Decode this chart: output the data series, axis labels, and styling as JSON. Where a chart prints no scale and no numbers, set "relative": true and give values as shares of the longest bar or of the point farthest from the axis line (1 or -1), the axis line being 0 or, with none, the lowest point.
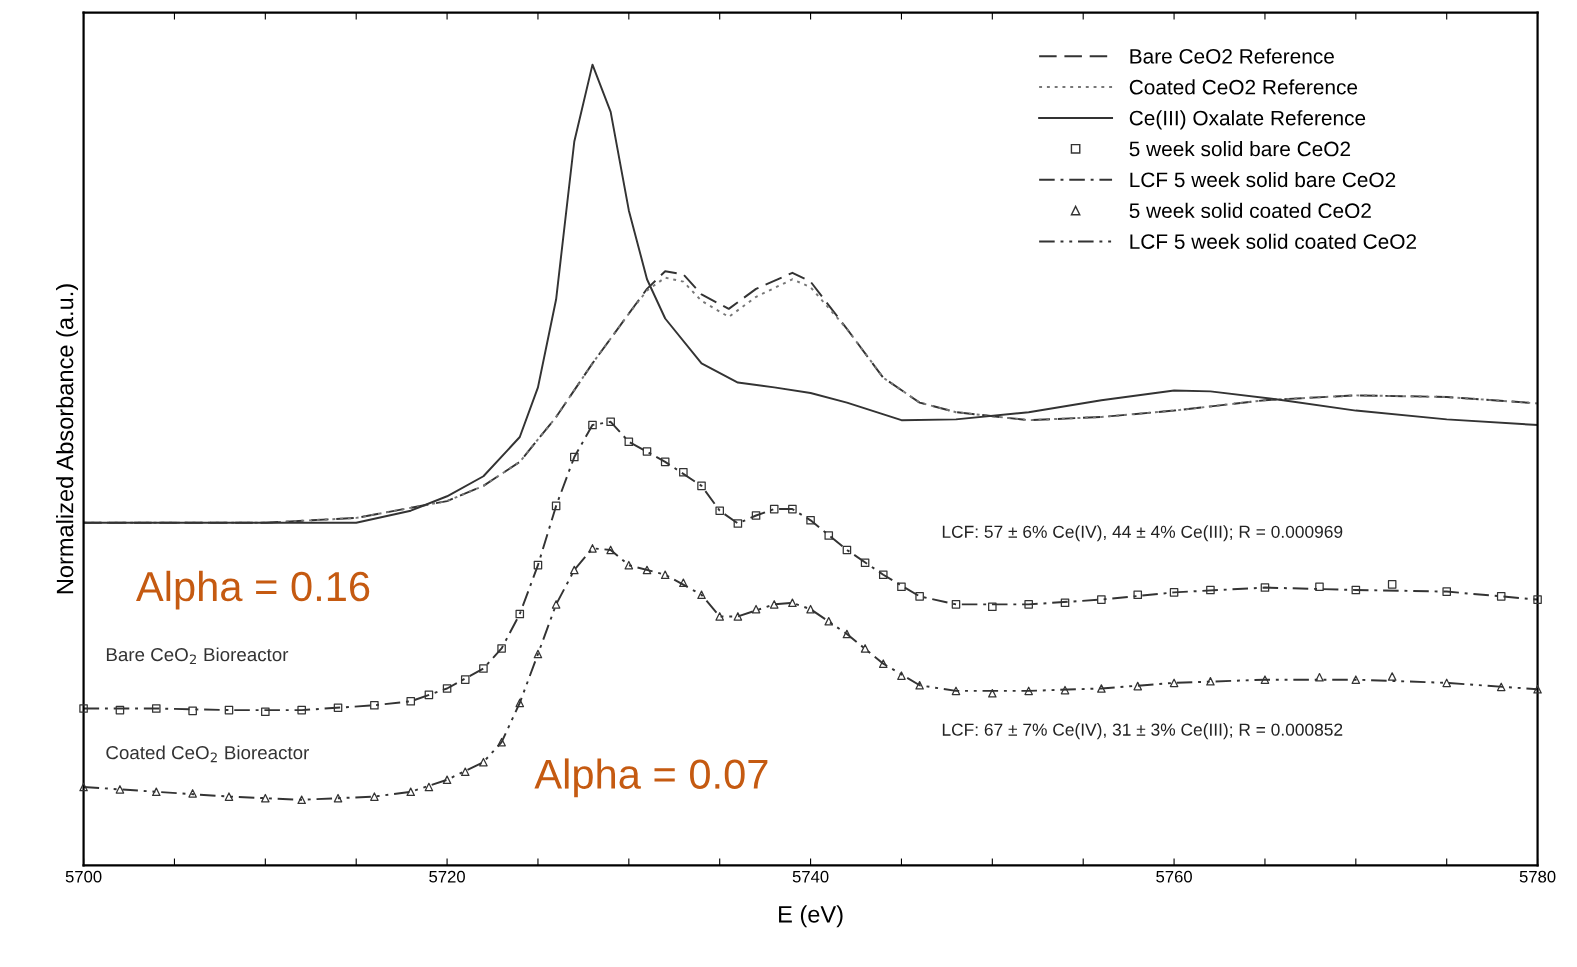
{
  "chart_data": {
    "type": "line",
    "relative": true,
    "xlabel": "E (eV)",
    "ylabel": "Normalized Absorbance (a.u.)",
    "xlim": [
      5700,
      5780
    ],
    "xticks": [
      5700,
      {
        "value": 5705,
        "label": null
      },
      {
        "value": 5710,
        "label": null
      },
      {
        "value": 5715,
        "label": null
      },
      5720,
      {
        "value": 5725,
        "label": null
      },
      {
        "value": 5730,
        "label": null
      },
      {
        "value": 5735,
        "label": null
      },
      5740,
      {
        "value": 5745,
        "label": null
      },
      {
        "value": 5750,
        "label": null
      },
      {
        "value": 5755,
        "label": null
      },
      5760,
      {
        "value": 5765,
        "label": null
      },
      {
        "value": 5770,
        "label": null
      },
      {
        "value": 5775,
        "label": null
      },
      5780
    ],
    "tick_labels": "x",
    "grid": false,
    "legend": "top right",
    "series": [
      {
        "name": "Bare CeO2 Reference",
        "color": "#333333",
        "line_style": "dashed",
        "x": [
          5700,
          5710,
          5715,
          5720,
          5722,
          5724,
          5726,
          5728,
          5730,
          5731,
          5732,
          5733,
          5734,
          5735.5,
          5737,
          5739,
          5740,
          5742,
          5744,
          5746,
          5748,
          5752,
          5756,
          5760,
          5765,
          5770,
          5775,
          5780
        ],
        "values": [
          0.428,
          0.428,
          0.434,
          0.455,
          0.474,
          0.504,
          0.56,
          0.627,
          0.689,
          0.72,
          0.742,
          0.738,
          0.713,
          0.695,
          0.72,
          0.74,
          0.729,
          0.67,
          0.609,
          0.578,
          0.566,
          0.556,
          0.56,
          0.568,
          0.581,
          0.587,
          0.585,
          0.577
        ]
      },
      {
        "name": "Coated CeO2 Reference",
        "color": "#777777",
        "line_style": "dotted",
        "x": [
          5700,
          5710,
          5715,
          5720,
          5722,
          5724,
          5726,
          5728,
          5730,
          5731,
          5732,
          5733,
          5734,
          5735.5,
          5737,
          5739,
          5740,
          5742,
          5744,
          5746,
          5748,
          5752,
          5756,
          5760,
          5765,
          5770,
          5775,
          5780
        ],
        "values": [
          0.428,
          0.428,
          0.434,
          0.455,
          0.474,
          0.504,
          0.56,
          0.627,
          0.689,
          0.718,
          0.734,
          0.729,
          0.705,
          0.685,
          0.71,
          0.732,
          0.722,
          0.67,
          0.609,
          0.578,
          0.566,
          0.556,
          0.56,
          0.568,
          0.581,
          0.587,
          0.585,
          0.577
        ]
      },
      {
        "name": "Ce(III) Oxalate Reference",
        "color": "#333333",
        "line_style": "solid",
        "x": [
          5700,
          5715,
          5718,
          5720,
          5722,
          5724,
          5725,
          5726,
          5727,
          5728,
          5729,
          5730,
          5731,
          5732,
          5734,
          5736,
          5738,
          5740,
          5742,
          5745,
          5748,
          5752,
          5756,
          5760,
          5762,
          5766,
          5770,
          5775,
          5780
        ],
        "values": [
          0.428,
          0.428,
          0.443,
          0.461,
          0.486,
          0.535,
          0.597,
          0.707,
          0.904,
          1.0,
          0.941,
          0.818,
          0.732,
          0.683,
          0.627,
          0.603,
          0.597,
          0.59,
          0.578,
          0.556,
          0.557,
          0.566,
          0.581,
          0.593,
          0.592,
          0.581,
          0.568,
          0.557,
          0.55
        ]
      },
      {
        "name": "5 week solid bare CeO2",
        "type": "scatter",
        "marker": "square",
        "color": "#333333",
        "x": [
          5700,
          5702,
          5704,
          5706,
          5708,
          5710,
          5712,
          5714,
          5716,
          5718,
          5719,
          5720,
          5721,
          5722,
          5723,
          5724,
          5725,
          5726,
          5727,
          5728,
          5729,
          5730,
          5731,
          5732,
          5733,
          5734,
          5735,
          5736,
          5737,
          5738,
          5739,
          5740,
          5741,
          5742,
          5743,
          5744,
          5745,
          5746,
          5748,
          5750,
          5752,
          5754,
          5756,
          5758,
          5760,
          5762,
          5765,
          5768,
          5770,
          5772,
          5775,
          5778,
          5780
        ],
        "values": [
          0.196,
          0.194,
          0.196,
          0.193,
          0.194,
          0.192,
          0.194,
          0.197,
          0.2,
          0.205,
          0.213,
          0.221,
          0.232,
          0.246,
          0.271,
          0.314,
          0.375,
          0.449,
          0.51,
          0.55,
          0.554,
          0.529,
          0.517,
          0.504,
          0.491,
          0.474,
          0.443,
          0.427,
          0.437,
          0.445,
          0.445,
          0.431,
          0.412,
          0.394,
          0.378,
          0.363,
          0.348,
          0.336,
          0.326,
          0.323,
          0.326,
          0.328,
          0.332,
          0.338,
          0.341,
          0.344,
          0.347,
          0.348,
          0.344,
          0.351,
          0.342,
          0.336,
          0.332
        ]
      },
      {
        "name": "LCF 5 week solid bare CeO2",
        "color": "#333333",
        "line_style": "dashdot",
        "x": [
          5700,
          5704,
          5708,
          5712,
          5716,
          5718,
          5720,
          5722,
          5723,
          5724,
          5725,
          5726,
          5727,
          5728,
          5729,
          5730,
          5732,
          5734,
          5735,
          5736,
          5737,
          5738,
          5739,
          5740,
          5742,
          5744,
          5746,
          5748,
          5752,
          5756,
          5760,
          5765,
          5770,
          5775,
          5780
        ],
        "values": [
          0.196,
          0.196,
          0.194,
          0.194,
          0.2,
          0.205,
          0.221,
          0.246,
          0.271,
          0.314,
          0.375,
          0.449,
          0.51,
          0.55,
          0.554,
          0.529,
          0.504,
          0.474,
          0.443,
          0.427,
          0.437,
          0.445,
          0.445,
          0.431,
          0.394,
          0.363,
          0.336,
          0.326,
          0.326,
          0.332,
          0.341,
          0.347,
          0.344,
          0.342,
          0.332
        ]
      },
      {
        "name": "5 week solid coated CeO2",
        "type": "scatter",
        "marker": "triangle",
        "color": "#333333",
        "x": [
          5700,
          5702,
          5704,
          5706,
          5708,
          5710,
          5712,
          5714,
          5716,
          5718,
          5719,
          5720,
          5721,
          5722,
          5723,
          5724,
          5725,
          5726,
          5727,
          5728,
          5729,
          5730,
          5731,
          5732,
          5733,
          5734,
          5735,
          5736,
          5737,
          5738,
          5739,
          5740,
          5741,
          5742,
          5743,
          5744,
          5745,
          5746,
          5748,
          5750,
          5752,
          5754,
          5756,
          5758,
          5760,
          5762,
          5765,
          5768,
          5770,
          5772,
          5775,
          5778,
          5780
        ],
        "values": [
          0.098,
          0.095,
          0.092,
          0.09,
          0.086,
          0.084,
          0.082,
          0.084,
          0.086,
          0.092,
          0.098,
          0.107,
          0.117,
          0.129,
          0.154,
          0.203,
          0.264,
          0.326,
          0.369,
          0.396,
          0.394,
          0.375,
          0.369,
          0.363,
          0.353,
          0.338,
          0.311,
          0.311,
          0.32,
          0.326,
          0.328,
          0.32,
          0.305,
          0.289,
          0.271,
          0.252,
          0.237,
          0.225,
          0.218,
          0.215,
          0.218,
          0.219,
          0.221,
          0.224,
          0.228,
          0.23,
          0.232,
          0.235,
          0.232,
          0.236,
          0.228,
          0.223,
          0.22
        ]
      },
      {
        "name": "LCF 5 week solid coated CeO2",
        "color": "#333333",
        "line_style": "dashdotdot",
        "x": [
          5700,
          5704,
          5708,
          5712,
          5716,
          5718,
          5720,
          5722,
          5723,
          5724,
          5725,
          5726,
          5727,
          5728,
          5729,
          5730,
          5732,
          5734,
          5735,
          5736,
          5738,
          5739,
          5740,
          5742,
          5744,
          5746,
          5748,
          5752,
          5756,
          5760,
          5765,
          5770,
          5775,
          5780
        ],
        "values": [
          0.098,
          0.092,
          0.086,
          0.082,
          0.086,
          0.092,
          0.107,
          0.129,
          0.154,
          0.203,
          0.264,
          0.326,
          0.369,
          0.396,
          0.394,
          0.375,
          0.363,
          0.338,
          0.311,
          0.311,
          0.326,
          0.328,
          0.32,
          0.289,
          0.252,
          0.225,
          0.218,
          0.218,
          0.221,
          0.228,
          0.232,
          0.232,
          0.228,
          0.22
        ]
      }
    ],
    "annotations": [
      "LCF: 57 ± 6% Ce(IV), 44 ± 4% Ce(III); R = 0.000969",
      "LCF: 67 ± 7% Ce(IV), 31 ± 3% Ce(III); R = 0.000852",
      "Bare CeO$_{2}$ Bioreactor",
      "Coated CeO$_{2}$ Bioreactor",
      "Alpha = 0.16",
      "Alpha = 0.07"
    ]
  }
}
